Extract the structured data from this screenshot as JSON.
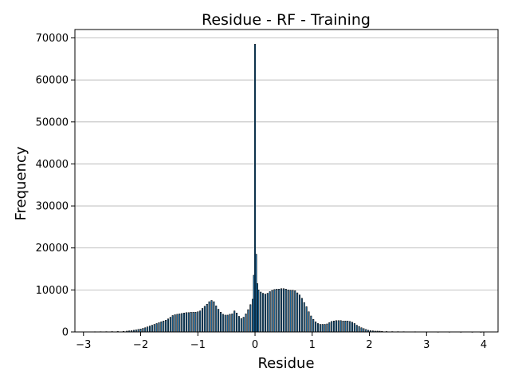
{
  "chart_data": {
    "type": "bar",
    "title": "Residue - RF - Training",
    "xlabel": "Residue",
    "ylabel": "Frequency",
    "xlim": [
      -3.15,
      4.25
    ],
    "ylim": [
      0,
      72000
    ],
    "xticks": [
      -3,
      -2,
      -1,
      0,
      1,
      2,
      3,
      4
    ],
    "xtick_labels": [
      "−3",
      "−2",
      "−1",
      "0",
      "1",
      "2",
      "3",
      "4"
    ],
    "yticks": [
      0,
      10000,
      20000,
      30000,
      40000,
      50000,
      60000,
      70000
    ],
    "ytick_labels": [
      "0",
      "10000",
      "20000",
      "30000",
      "40000",
      "50000",
      "60000",
      "70000"
    ],
    "grid": "horizontal",
    "bar_color": "#1f77b4",
    "edge_color": "#000000",
    "bin_width": 0.02,
    "bins": [
      [
        -2.8,
        50
      ],
      [
        -2.7,
        60
      ],
      [
        -2.6,
        70
      ],
      [
        -2.5,
        90
      ],
      [
        -2.4,
        110
      ],
      [
        -2.3,
        150
      ],
      [
        -2.24,
        200
      ],
      [
        -2.2,
        250
      ],
      [
        -2.16,
        300
      ],
      [
        -2.12,
        400
      ],
      [
        -2.08,
        500
      ],
      [
        -2.04,
        600
      ],
      [
        -2.0,
        700
      ],
      [
        -1.96,
        850
      ],
      [
        -1.92,
        1000
      ],
      [
        -1.88,
        1200
      ],
      [
        -1.84,
        1400
      ],
      [
        -1.8,
        1600
      ],
      [
        -1.76,
        1800
      ],
      [
        -1.72,
        2000
      ],
      [
        -1.68,
        2200
      ],
      [
        -1.64,
        2400
      ],
      [
        -1.6,
        2600
      ],
      [
        -1.56,
        2800
      ],
      [
        -1.52,
        3100
      ],
      [
        -1.48,
        3500
      ],
      [
        -1.44,
        3900
      ],
      [
        -1.4,
        4100
      ],
      [
        -1.36,
        4200
      ],
      [
        -1.32,
        4300
      ],
      [
        -1.28,
        4400
      ],
      [
        -1.24,
        4500
      ],
      [
        -1.2,
        4600
      ],
      [
        -1.16,
        4600
      ],
      [
        -1.12,
        4700
      ],
      [
        -1.08,
        4700
      ],
      [
        -1.04,
        4700
      ],
      [
        -1.0,
        4800
      ],
      [
        -0.96,
        5000
      ],
      [
        -0.92,
        5600
      ],
      [
        -0.88,
        6100
      ],
      [
        -0.84,
        6600
      ],
      [
        -0.8,
        7200
      ],
      [
        -0.76,
        7500
      ],
      [
        -0.72,
        7200
      ],
      [
        -0.68,
        6200
      ],
      [
        -0.64,
        5400
      ],
      [
        -0.6,
        4700
      ],
      [
        -0.56,
        4200
      ],
      [
        -0.52,
        4000
      ],
      [
        -0.48,
        4000
      ],
      [
        -0.44,
        4200
      ],
      [
        -0.4,
        4300
      ],
      [
        -0.36,
        5000
      ],
      [
        -0.32,
        4500
      ],
      [
        -0.28,
        3700
      ],
      [
        -0.24,
        3200
      ],
      [
        -0.2,
        3500
      ],
      [
        -0.16,
        4300
      ],
      [
        -0.12,
        5300
      ],
      [
        -0.08,
        6500
      ],
      [
        -0.04,
        7800
      ],
      [
        -0.02,
        13500
      ],
      [
        0.0,
        68500
      ],
      [
        0.02,
        18500
      ],
      [
        0.04,
        11500
      ],
      [
        0.06,
        10000
      ],
      [
        0.1,
        9500
      ],
      [
        0.14,
        9200
      ],
      [
        0.18,
        9000
      ],
      [
        0.22,
        9200
      ],
      [
        0.26,
        9600
      ],
      [
        0.3,
        9900
      ],
      [
        0.34,
        10100
      ],
      [
        0.38,
        10200
      ],
      [
        0.42,
        10200
      ],
      [
        0.46,
        10300
      ],
      [
        0.5,
        10300
      ],
      [
        0.54,
        10200
      ],
      [
        0.58,
        10000
      ],
      [
        0.62,
        9900
      ],
      [
        0.66,
        9900
      ],
      [
        0.7,
        9800
      ],
      [
        0.74,
        9300
      ],
      [
        0.78,
        8800
      ],
      [
        0.82,
        8000
      ],
      [
        0.86,
        7000
      ],
      [
        0.9,
        6000
      ],
      [
        0.94,
        4800
      ],
      [
        0.98,
        3800
      ],
      [
        1.02,
        3000
      ],
      [
        1.06,
        2400
      ],
      [
        1.1,
        2000
      ],
      [
        1.14,
        1800
      ],
      [
        1.18,
        1800
      ],
      [
        1.22,
        1800
      ],
      [
        1.26,
        1900
      ],
      [
        1.3,
        2200
      ],
      [
        1.34,
        2500
      ],
      [
        1.38,
        2600
      ],
      [
        1.42,
        2700
      ],
      [
        1.46,
        2700
      ],
      [
        1.5,
        2700
      ],
      [
        1.54,
        2600
      ],
      [
        1.58,
        2600
      ],
      [
        1.62,
        2600
      ],
      [
        1.66,
        2500
      ],
      [
        1.7,
        2300
      ],
      [
        1.74,
        2000
      ],
      [
        1.78,
        1600
      ],
      [
        1.82,
        1300
      ],
      [
        1.86,
        1000
      ],
      [
        1.9,
        800
      ],
      [
        1.94,
        600
      ],
      [
        1.98,
        400
      ],
      [
        2.02,
        300
      ],
      [
        2.06,
        250
      ],
      [
        2.1,
        200
      ],
      [
        2.14,
        200
      ],
      [
        2.18,
        180
      ],
      [
        2.22,
        150
      ],
      [
        2.3,
        100
      ],
      [
        2.4,
        80
      ],
      [
        2.5,
        70
      ],
      [
        2.6,
        60
      ],
      [
        2.8,
        50
      ],
      [
        3.0,
        40
      ],
      [
        3.2,
        30
      ],
      [
        3.4,
        30
      ],
      [
        3.6,
        20
      ],
      [
        3.8,
        20
      ],
      [
        3.95,
        10
      ]
    ]
  }
}
